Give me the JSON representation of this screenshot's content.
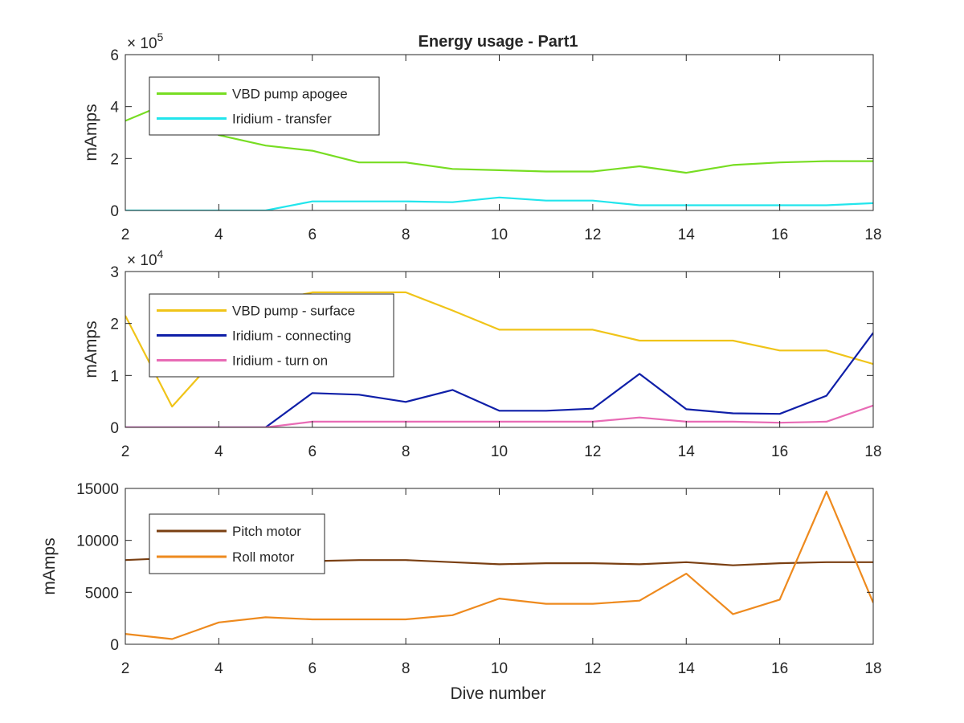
{
  "figure": {
    "title": "Energy usage - Part1",
    "xlabel": "Dive number"
  },
  "chart_data": [
    {
      "type": "line",
      "title": "Energy usage - Part1",
      "xlabel": "",
      "ylabel": "mAmps",
      "exponent_label": "×10^5",
      "exponent_base": "× 10",
      "exponent_power": "5",
      "xlim": [
        2,
        18
      ],
      "ylim": [
        0,
        600000
      ],
      "xticks": [
        2,
        4,
        6,
        8,
        10,
        12,
        14,
        16,
        18
      ],
      "yticks": [
        0,
        200000,
        400000,
        600000
      ],
      "ytick_labels": [
        "0",
        "2",
        "4",
        "6"
      ],
      "grid": false,
      "legend_position": "top-left",
      "series": [
        {
          "name": "VBD pump apogee",
          "color": "#77dd22",
          "x": [
            2,
            3,
            4,
            5,
            6,
            7,
            8,
            9,
            10,
            11,
            12,
            13,
            14,
            15,
            16,
            17,
            18
          ],
          "y": [
            345000,
            420000,
            290000,
            250000,
            230000,
            185000,
            185000,
            160000,
            155000,
            150000,
            150000,
            170000,
            145000,
            175000,
            185000,
            190000,
            190000
          ]
        },
        {
          "name": "Iridium - transfer",
          "color": "#22e5ec",
          "x": [
            2,
            3,
            4,
            5,
            6,
            7,
            8,
            9,
            10,
            11,
            12,
            13,
            14,
            15,
            16,
            17,
            18
          ],
          "y": [
            0,
            0,
            0,
            0,
            35000,
            35000,
            35000,
            32000,
            50000,
            38000,
            38000,
            20000,
            20000,
            20000,
            20000,
            20000,
            28000
          ]
        }
      ]
    },
    {
      "type": "line",
      "title": "",
      "xlabel": "",
      "ylabel": "mAmps",
      "exponent_label": "×10^4",
      "exponent_base": "× 10",
      "exponent_power": "4",
      "xlim": [
        2,
        18
      ],
      "ylim": [
        0,
        30000
      ],
      "xticks": [
        2,
        4,
        6,
        8,
        10,
        12,
        14,
        16,
        18
      ],
      "yticks": [
        0,
        10000,
        20000,
        30000
      ],
      "ytick_labels": [
        "0",
        "1",
        "2",
        "3"
      ],
      "grid": false,
      "legend_position": "top-left",
      "series": [
        {
          "name": "VBD pump - surface",
          "color": "#f0c419",
          "x": [
            2,
            3,
            4,
            5,
            6,
            7,
            8,
            9,
            10,
            11,
            12,
            13,
            14,
            15,
            16,
            17,
            18
          ],
          "y": [
            21500,
            4000,
            14000,
            24000,
            26000,
            26000,
            26000,
            22500,
            18800,
            18800,
            18800,
            16700,
            16700,
            16700,
            14800,
            14800,
            12200
          ]
        },
        {
          "name": "Iridium - connecting",
          "color": "#0f1fa8",
          "x": [
            2,
            3,
            4,
            5,
            6,
            7,
            8,
            9,
            10,
            11,
            12,
            13,
            14,
            15,
            16,
            17,
            18
          ],
          "y": [
            0,
            0,
            0,
            0,
            6600,
            6300,
            4900,
            7200,
            3200,
            3200,
            3600,
            10300,
            3500,
            2700,
            2600,
            6100,
            18200
          ]
        },
        {
          "name": "Iridium - turn on",
          "color": "#e86bb5",
          "x": [
            2,
            3,
            4,
            5,
            6,
            7,
            8,
            9,
            10,
            11,
            12,
            13,
            14,
            15,
            16,
            17,
            18
          ],
          "y": [
            0,
            0,
            0,
            0,
            1100,
            1100,
            1100,
            1100,
            1100,
            1100,
            1100,
            1900,
            1100,
            1100,
            900,
            1100,
            4200
          ]
        }
      ]
    },
    {
      "type": "line",
      "title": "",
      "xlabel": "Dive number",
      "ylabel": "mAmps",
      "xlim": [
        2,
        18
      ],
      "ylim": [
        0,
        15000
      ],
      "xticks": [
        2,
        4,
        6,
        8,
        10,
        12,
        14,
        16,
        18
      ],
      "yticks": [
        0,
        5000,
        10000,
        15000
      ],
      "ytick_labels": [
        "0",
        "5000",
        "10000",
        "15000"
      ],
      "grid": false,
      "legend_position": "top-left",
      "series": [
        {
          "name": "Pitch motor",
          "color": "#7a3f12",
          "x": [
            2,
            3,
            4,
            5,
            6,
            7,
            8,
            9,
            10,
            11,
            12,
            13,
            14,
            15,
            16,
            17,
            18
          ],
          "y": [
            8100,
            8300,
            8000,
            8100,
            8000,
            8100,
            8100,
            7900,
            7700,
            7800,
            7800,
            7700,
            7900,
            7600,
            7800,
            7900,
            7900
          ]
        },
        {
          "name": "Roll motor",
          "color": "#ee8a1e",
          "x": [
            2,
            3,
            4,
            5,
            6,
            7,
            8,
            9,
            10,
            11,
            12,
            13,
            14,
            15,
            16,
            17,
            18
          ],
          "y": [
            1000,
            500,
            2100,
            2600,
            2400,
            2400,
            2400,
            2800,
            4400,
            3900,
            3900,
            4200,
            6800,
            2900,
            4300,
            14700,
            4000
          ]
        }
      ]
    }
  ]
}
